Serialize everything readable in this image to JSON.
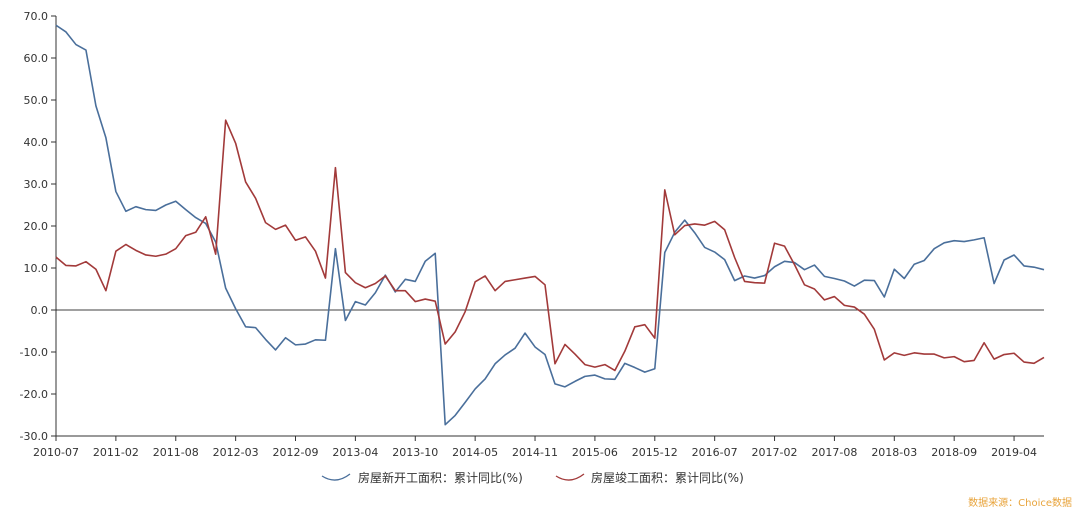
{
  "chart_data": {
    "type": "line",
    "title": "",
    "xlabel": "",
    "ylabel": "",
    "ylim": [
      -30,
      70
    ],
    "y_ticks": [
      "70.0",
      "60.0",
      "50.0",
      "40.0",
      "30.0",
      "20.0",
      "10.0",
      "0.0",
      "-10.0",
      "-20.0",
      "-30.0"
    ],
    "y_tick_values": [
      70,
      60,
      50,
      40,
      30,
      20,
      10,
      0,
      -10,
      -20,
      -30
    ],
    "x_ticks": [
      "2010-07",
      "2011-02",
      "2011-08",
      "2012-03",
      "2012-09",
      "2013-04",
      "2013-10",
      "2014-05",
      "2014-11",
      "2015-06",
      "2015-12",
      "2016-07",
      "2017-02",
      "2017-08",
      "2018-03",
      "2018-09",
      "2019-04"
    ],
    "x_tick_index": [
      0,
      6,
      12,
      18,
      24,
      30,
      36,
      42,
      48,
      54,
      60,
      66,
      72,
      78,
      84,
      90,
      96
    ],
    "legend_position": "bottom",
    "grid": false,
    "series": [
      {
        "name": "房屋新开工面积：累计同比(%)",
        "color": "#4a6f9b",
        "values": [
          67.8,
          66.2,
          63.2,
          61.9,
          48.6,
          41.0,
          28.2,
          23.5,
          24.6,
          23.9,
          23.7,
          25.0,
          25.9,
          23.9,
          22.0,
          20.6,
          16.2,
          5.2,
          0.3,
          -4.0,
          -4.2,
          -7.0,
          -9.5,
          -6.6,
          -8.3,
          -8.1,
          -7.1,
          -7.2,
          14.6,
          -2.5,
          2.0,
          1.2,
          4.1,
          8.3,
          4.3,
          7.3,
          6.8,
          11.6,
          13.5,
          -27.3,
          -25.1,
          -22.0,
          -18.8,
          -16.4,
          -12.8,
          -10.7,
          -9.1,
          -5.5,
          -8.8,
          -10.6,
          -17.6,
          -18.3,
          -17.0,
          -15.8,
          -15.5,
          -16.4,
          -16.5,
          -12.7,
          -13.7,
          -14.8,
          -14.0,
          13.7,
          18.5,
          21.4,
          18.4,
          14.9,
          13.8,
          12.0,
          7.0,
          8.1,
          7.6,
          8.2,
          10.3,
          11.6,
          11.3,
          9.6,
          10.7,
          8.0,
          7.5,
          6.9,
          5.7,
          7.1,
          7.0,
          3.1,
          9.7,
          7.5,
          10.9,
          11.8,
          14.6,
          16.0,
          16.5,
          16.3,
          16.7,
          17.2,
          6.3,
          11.9,
          13.1,
          10.5,
          10.2,
          9.6
        ]
      },
      {
        "name": "房屋竣工面积：累计同比(%)",
        "color": "#a23a3a",
        "values": [
          12.6,
          10.6,
          10.5,
          11.5,
          9.7,
          4.6,
          14.0,
          15.6,
          14.2,
          13.1,
          12.8,
          13.3,
          14.6,
          17.7,
          18.5,
          22.2,
          13.3,
          45.2,
          39.7,
          30.5,
          26.6,
          20.8,
          19.2,
          20.2,
          16.6,
          17.4,
          14.0,
          7.6,
          33.9,
          8.9,
          6.5,
          5.3,
          6.3,
          8.1,
          4.6,
          4.6,
          2.0,
          2.6,
          2.1,
          -8.1,
          -5.2,
          -0.4,
          6.7,
          8.1,
          4.6,
          6.8,
          7.2,
          7.6,
          8.0,
          6.0,
          -12.8,
          -8.2,
          -10.5,
          -13.0,
          -13.6,
          -13.0,
          -14.4,
          -9.8,
          -4.0,
          -3.5,
          -6.7,
          28.6,
          17.9,
          20.1,
          20.5,
          20.2,
          21.1,
          19.1,
          12.5,
          6.8,
          6.5,
          6.4,
          15.9,
          15.2,
          10.8,
          6.0,
          5.0,
          2.4,
          3.2,
          1.1,
          0.7,
          -1.0,
          -4.6,
          -11.9,
          -10.2,
          -10.8,
          -10.2,
          -10.5,
          -10.5,
          -11.4,
          -11.1,
          -12.3,
          -12.0,
          -7.8,
          -11.7,
          -10.6,
          -10.3,
          -12.4,
          -12.7,
          -11.3
        ]
      }
    ],
    "annotation": "数据来源：Choice数据"
  }
}
